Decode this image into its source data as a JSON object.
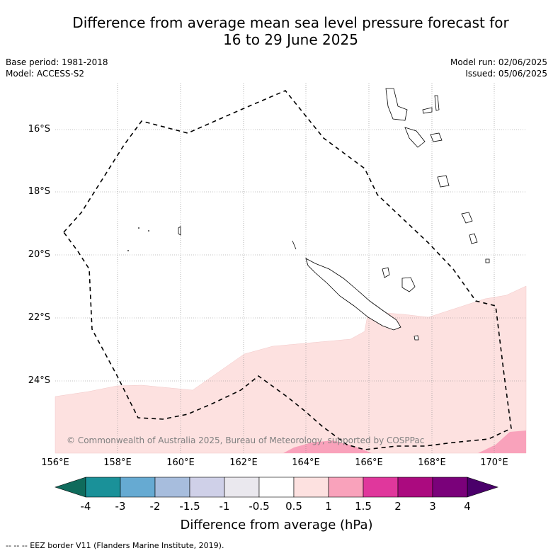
{
  "title_line1": "Difference from average mean sea level pressure forecast for",
  "title_line2": "16 to 29 June 2025",
  "base_period": "Base period: 1981-2018",
  "model": "Model: ACCESS-S2",
  "model_run": "Model run: 02/06/2025",
  "issued": "Issued: 05/06/2025",
  "lat_labels": [
    "16°S",
    "18°S",
    "20°S",
    "22°S",
    "24°S"
  ],
  "lon_labels": [
    "156°E",
    "158°E",
    "160°E",
    "162°E",
    "164°E",
    "166°E",
    "168°E",
    "170°E"
  ],
  "copyright": "© Commonwealth of Australia 2025, Bureau of Meteorology, supported by COSPPac",
  "colorbar": {
    "ticks": [
      "-4",
      "-3",
      "-2",
      "-1.5",
      "-1",
      "-0.5",
      "0.5",
      "1",
      "1.5",
      "2",
      "3",
      "4"
    ],
    "colors": [
      "#1a9199",
      "#66aad2",
      "#a7bddd",
      "#cfd0e8",
      "#eae8ee",
      "#ffffff",
      "#fde1e0",
      "#f9a2bb",
      "#e0379c",
      "#ab0a7f",
      "#7a017a"
    ],
    "low_extend_color": "#0f6b5c",
    "high_extend_color": "#4a006a",
    "label": "Difference from average (hPa)"
  },
  "legend_footer": "--  --  -- EEZ border V11 (Flanders Marine Institute, 2019)."
}
